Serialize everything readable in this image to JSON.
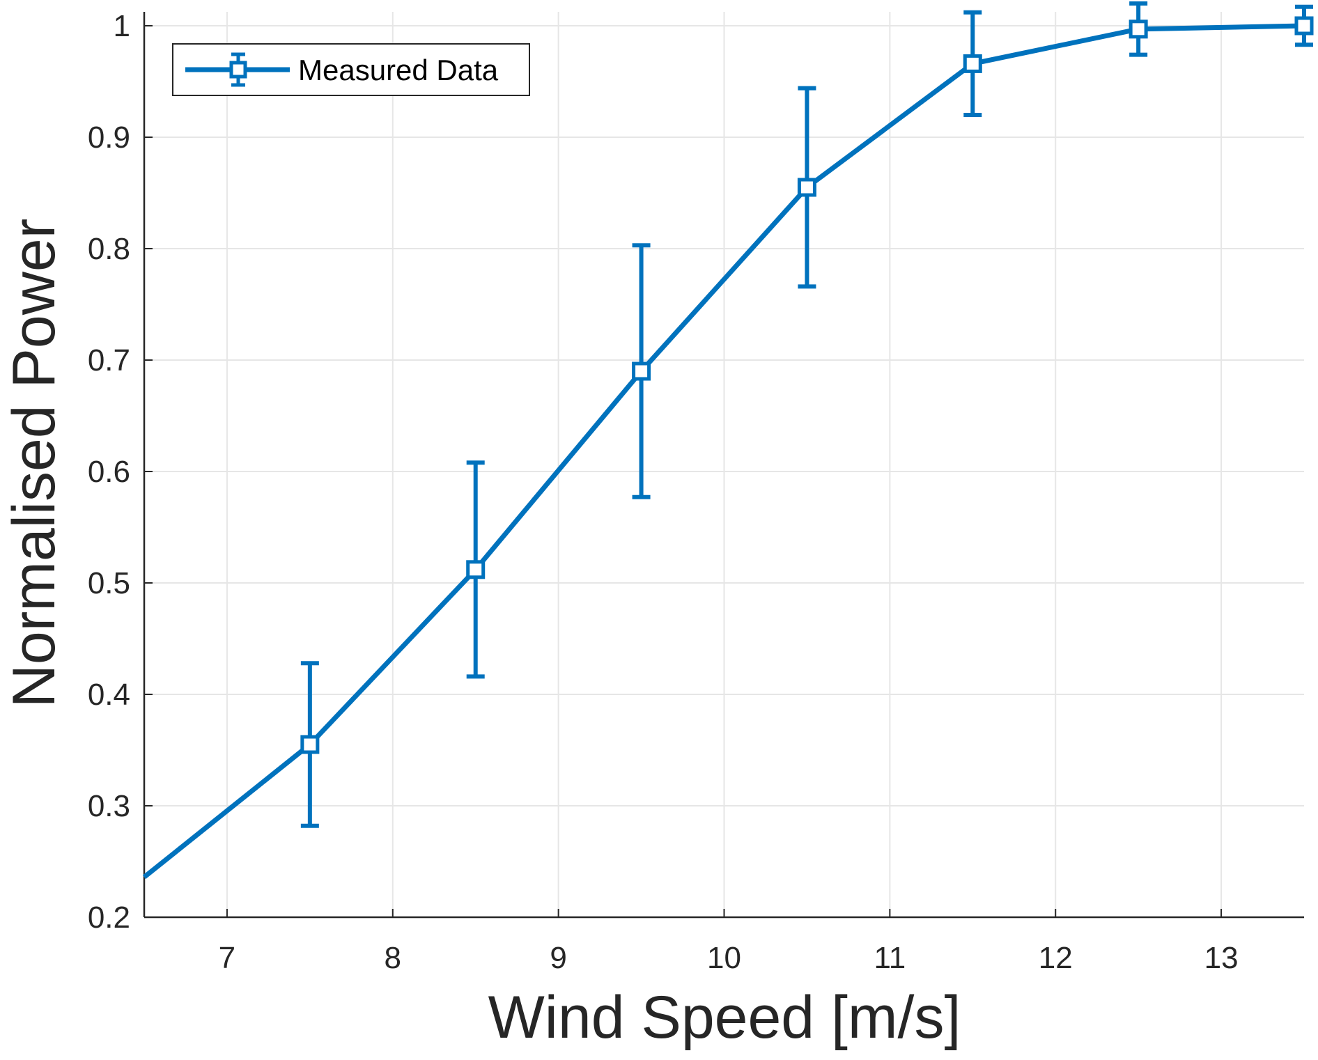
{
  "chart_data": {
    "type": "line",
    "xlabel": "Wind Speed [m/s]",
    "ylabel": "Normalised Power",
    "xlim": [
      6.5,
      13.5
    ],
    "ylim": [
      0.2,
      1.0
    ],
    "xticks": [
      7,
      8,
      9,
      10,
      11,
      12,
      13
    ],
    "yticks": [
      0.2,
      0.3,
      0.4,
      0.5,
      0.6,
      0.7,
      0.8,
      0.9,
      1.0
    ],
    "ytick_labels": [
      "0.2",
      "0.3",
      "0.4",
      "0.5",
      "0.6",
      "0.7",
      "0.8",
      "0.9",
      "1"
    ],
    "grid": true,
    "legend_position": "top-left",
    "series": [
      {
        "name": "Measured Data",
        "color": "#0072BD",
        "marker": "square",
        "x": [
          7.5,
          8.5,
          9.5,
          10.5,
          11.5,
          12.5,
          13.5
        ],
        "y": [
          0.355,
          0.512,
          0.69,
          0.855,
          0.966,
          0.997,
          1.0
        ],
        "err_low": [
          0.073,
          0.096,
          0.113,
          0.089,
          0.046,
          0.023,
          0.017
        ],
        "err_high": [
          0.073,
          0.096,
          0.113,
          0.089,
          0.046,
          0.023,
          0.017
        ],
        "line_extends_from": [
          6.5,
          0.236
        ]
      }
    ]
  }
}
